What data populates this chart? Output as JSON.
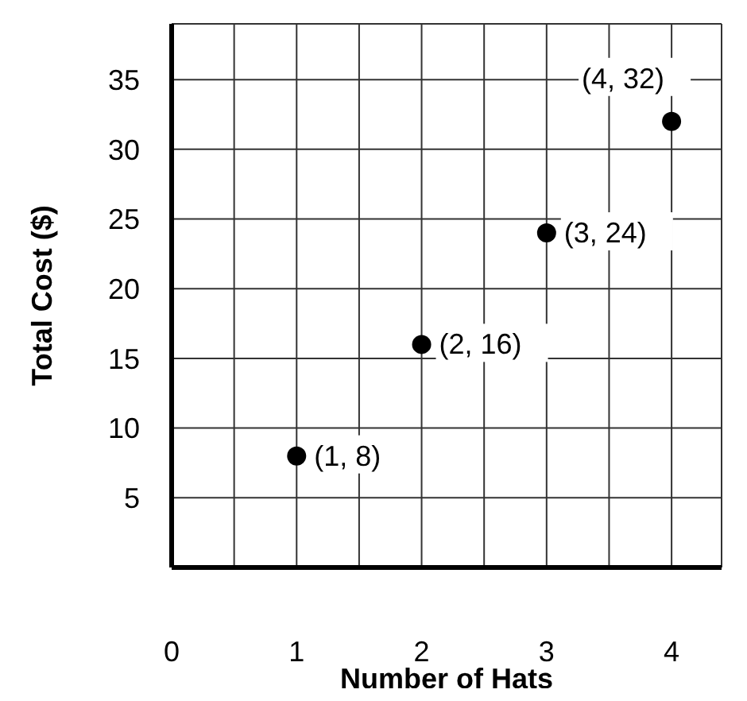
{
  "chart_data": {
    "type": "scatter",
    "xlabel": "Number of Hats",
    "ylabel": "Total Cost ($)",
    "x": [
      1,
      2,
      3,
      4
    ],
    "series": [
      {
        "color": "#000000",
        "values": [
          8,
          16,
          24,
          32
        ]
      }
    ],
    "xlim": [
      0,
      4.4
    ],
    "ylim": [
      0,
      39
    ],
    "xticks": [
      0,
      {
        "value": 0.5,
        "label": null
      },
      1,
      {
        "value": 1.5,
        "label": null
      },
      2,
      {
        "value": 2.5,
        "label": null
      },
      3,
      {
        "value": 3.5,
        "label": null
      },
      4
    ],
    "yticks": [
      5,
      10,
      15,
      20,
      25,
      30,
      35
    ],
    "grid": true,
    "marker": "circle",
    "annotations": [
      {
        "text": "(1, 8)",
        "x": 1,
        "y": 8
      },
      {
        "text": "(2, 16)",
        "x": 2,
        "y": 16
      },
      {
        "text": "(3, 24)",
        "x": 3,
        "y": 24
      },
      {
        "text": "(4, 32)",
        "x": 4,
        "y": 32
      }
    ]
  }
}
